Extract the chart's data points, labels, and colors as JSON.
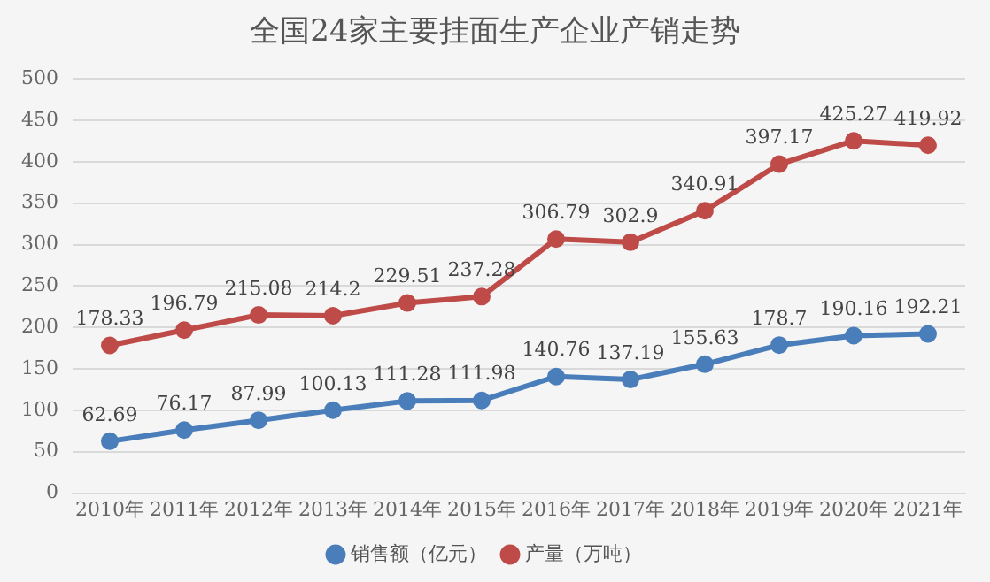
{
  "chart_data": {
    "type": "line",
    "title": "全国24家主要挂面生产企业产销走势",
    "categories": [
      "2010年",
      "2011年",
      "2012年",
      "2013年",
      "2014年",
      "2015年",
      "2016年",
      "2017年",
      "2018年",
      "2019年",
      "2020年",
      "2021年"
    ],
    "series": [
      {
        "name": "销售额（亿元）",
        "color": "#4a7ebb",
        "values": [
          62.69,
          76.17,
          87.99,
          100.13,
          111.28,
          111.98,
          140.76,
          137.19,
          155.63,
          178.7,
          190.16,
          192.21
        ]
      },
      {
        "name": "产量（万吨）",
        "color": "#be4b48",
        "values": [
          178.33,
          196.79,
          215.08,
          214.2,
          229.51,
          237.28,
          306.79,
          302.9,
          340.91,
          397.17,
          425.27,
          419.92
        ]
      }
    ],
    "ylim": [
      0,
      500
    ],
    "yticks": [
      0,
      50,
      100,
      150,
      200,
      250,
      300,
      350,
      400,
      450,
      500
    ],
    "grid": "y",
    "legend": "bottom",
    "marker": "circle",
    "line_style": "solid",
    "data_labels": true
  }
}
